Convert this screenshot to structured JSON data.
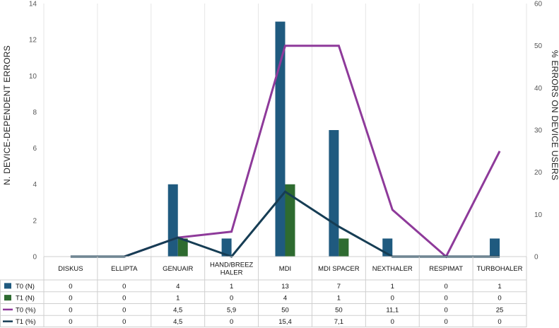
{
  "chart_data": {
    "type": "bar",
    "categories": [
      "DISKUS",
      "ELLIPTA",
      "GENUAIR",
      "HAND/BREEZ|HALER",
      "MDI",
      "MDI SPACER",
      "NEXTHALER",
      "RESPIMAT",
      "TURBOHALER"
    ],
    "ylabel": "N. DEVICE-DEPENDENT ERRORS",
    "y2label": "% ERRORS ON DEVICE USERS",
    "ylim": [
      0,
      14
    ],
    "y_ticks": [
      "0",
      "2",
      "4",
      "6",
      "8",
      "10",
      "12",
      "14"
    ],
    "y2lim": [
      0,
      60
    ],
    "y2_ticks": [
      "0",
      "10",
      "20",
      "30",
      "40",
      "50",
      "60"
    ],
    "series": [
      {
        "name": "T0 (N)",
        "kind": "bar",
        "axis": "left",
        "color": "#1f5a7f",
        "values": [
          0,
          0,
          4,
          1,
          13,
          7,
          1,
          0,
          1
        ],
        "labels": [
          "0",
          "0",
          "4",
          "1",
          "13",
          "7",
          "1",
          "0",
          "1"
        ]
      },
      {
        "name": "T1 (N)",
        "kind": "bar",
        "axis": "left",
        "color": "#2e6b30",
        "values": [
          0,
          0,
          1,
          0,
          4,
          1,
          0,
          0,
          0
        ],
        "labels": [
          "0",
          "0",
          "1",
          "0",
          "4",
          "1",
          "0",
          "0",
          "0"
        ]
      },
      {
        "name": "T0 (%)",
        "kind": "line",
        "axis": "right",
        "color": "#8e3a9a",
        "values": [
          0,
          0,
          4.5,
          5.9,
          50,
          50,
          11.1,
          0,
          25
        ],
        "labels": [
          "0",
          "0",
          "4,5",
          "5,9",
          "50",
          "50",
          "11,1",
          "0",
          "25"
        ]
      },
      {
        "name": "T1 (%)",
        "kind": "line",
        "axis": "right",
        "color": "#163d54",
        "values": [
          0,
          0,
          4.5,
          0,
          15.4,
          7.1,
          0,
          0,
          0
        ],
        "labels": [
          "0",
          "0",
          "4,5",
          "0",
          "15,4",
          "7,1",
          "0",
          "0",
          "0"
        ]
      }
    ]
  }
}
